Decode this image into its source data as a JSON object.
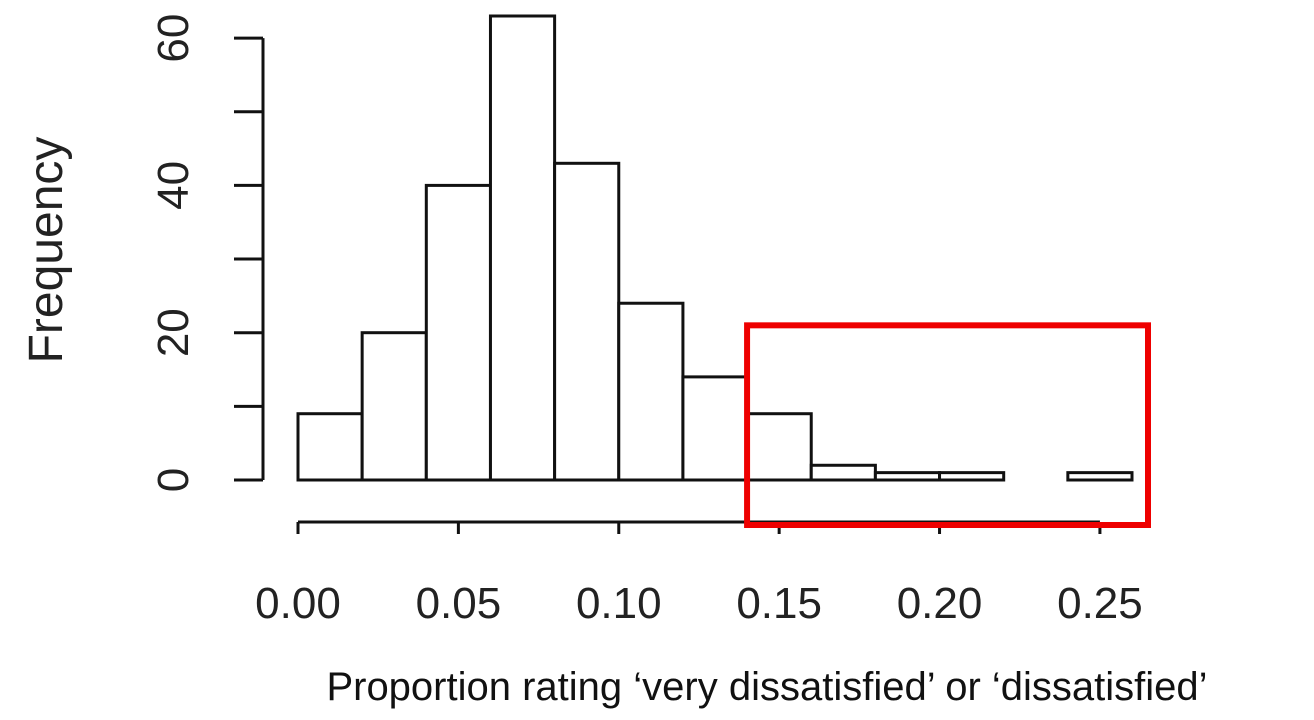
{
  "chart_data": {
    "type": "bar",
    "subtype": "histogram",
    "title": "",
    "xlabel": "Proportion rating ‘very dissatisfied’ or ‘dissatisfied’",
    "ylabel": "Frequency",
    "bin_edges": [
      0.0,
      0.02,
      0.04,
      0.06,
      0.08,
      0.1,
      0.12,
      0.14,
      0.16,
      0.18,
      0.2,
      0.22,
      0.24,
      0.26
    ],
    "values": [
      9,
      20,
      40,
      63,
      43,
      24,
      14,
      9,
      2,
      1,
      1,
      0,
      1
    ],
    "xlim": [
      0.0,
      0.26
    ],
    "ylim": [
      0,
      63
    ],
    "x_ticks": [
      {
        "value": 0.0,
        "label": "0.00"
      },
      {
        "value": 0.05,
        "label": "0.05"
      },
      {
        "value": 0.1,
        "label": "0.10"
      },
      {
        "value": 0.15,
        "label": "0.15"
      },
      {
        "value": 0.2,
        "label": "0.20"
      },
      {
        "value": 0.25,
        "label": "0.25"
      }
    ],
    "y_ticks": [
      {
        "value": 0,
        "label": "0"
      },
      {
        "value": 10,
        "label": ""
      },
      {
        "value": 20,
        "label": "20"
      },
      {
        "value": 30,
        "label": ""
      },
      {
        "value": 40,
        "label": "40"
      },
      {
        "value": 50,
        "label": ""
      },
      {
        "value": 60,
        "label": "60"
      }
    ],
    "grid": false,
    "highlight": {
      "shape": "rectangle",
      "color": "#ee0000",
      "x_range": [
        0.14,
        0.26
      ],
      "y_range": [
        0,
        21
      ]
    }
  }
}
